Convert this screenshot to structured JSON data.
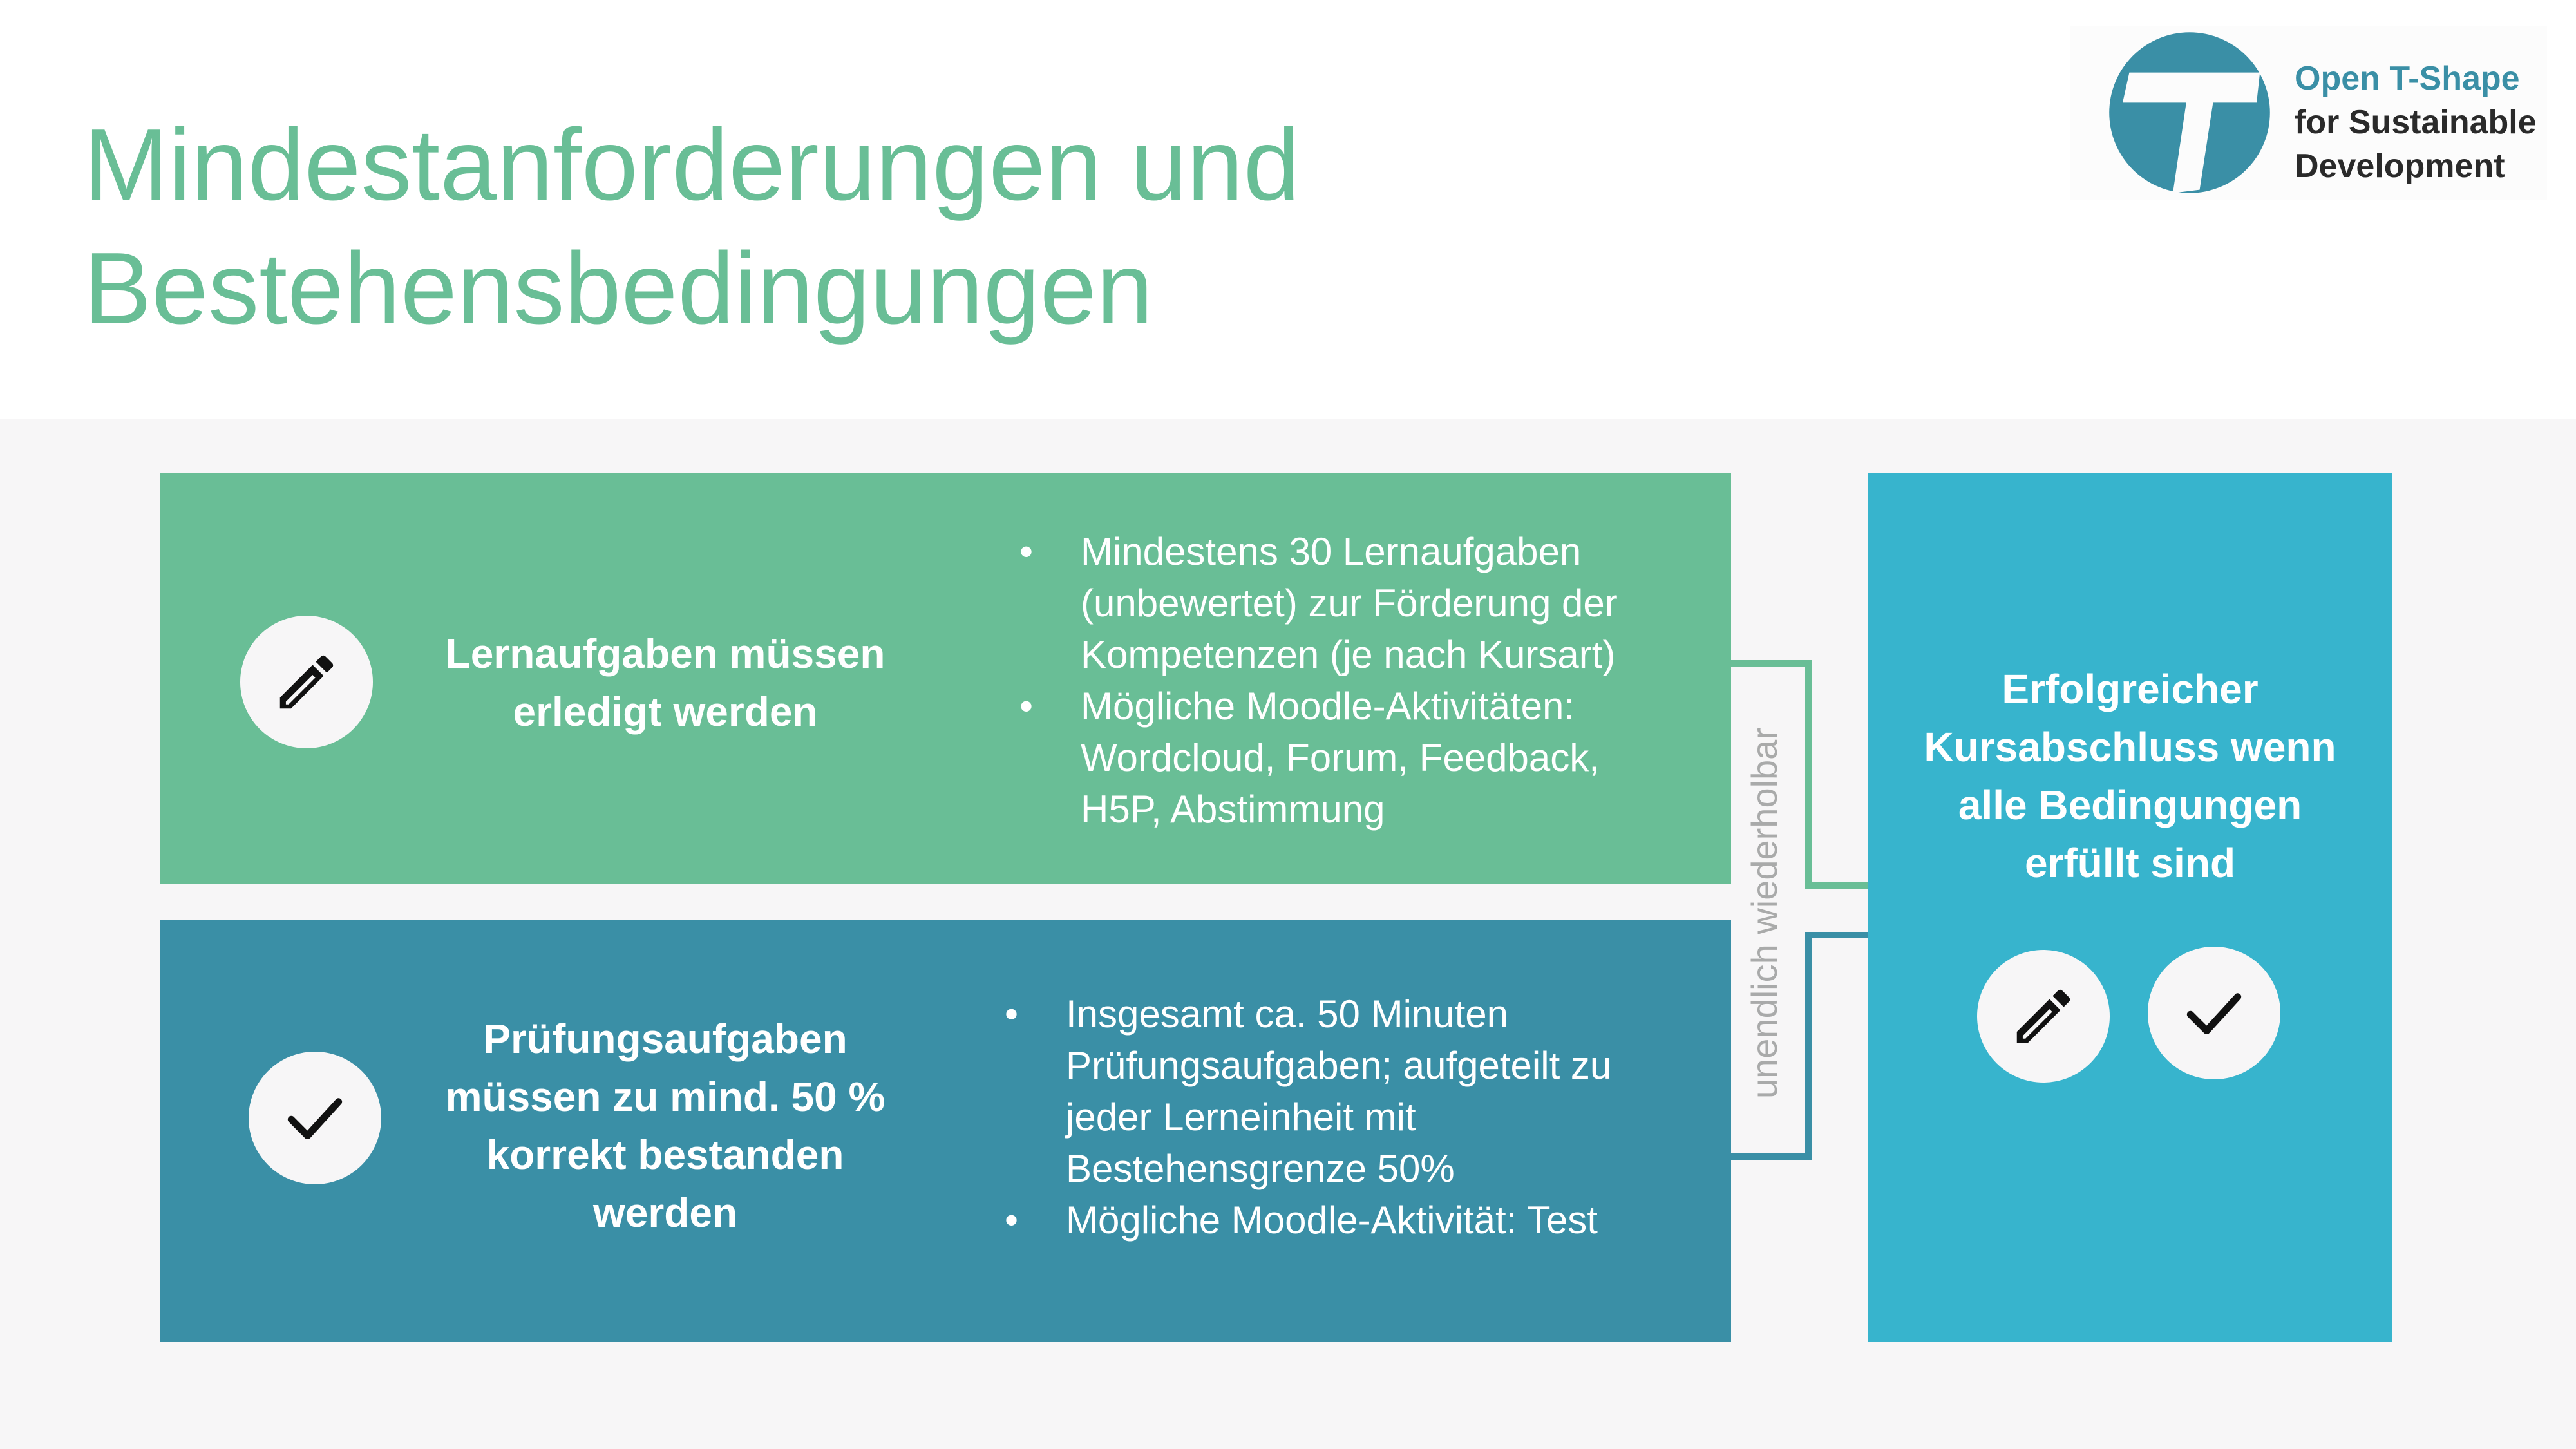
{
  "title": {
    "line1": "Mindestanforderungen und",
    "line2": "Bestehensbedingungen"
  },
  "logo": {
    "line1": "Open T-Shape",
    "line2": "for Sustainable",
    "line3": "Development",
    "colors": {
      "primary": "#3A8FA6",
      "text": "#2a2a2a"
    }
  },
  "learning_box": {
    "icon": "pencil-icon",
    "heading_line1": "Lernaufgaben müssen",
    "heading_line2": "erledigt werden",
    "bullets": [
      {
        "line1": "Mindestens 30 Lernaufgaben",
        "line2": "(unbewertet) zur Förderung der",
        "line3": "Kompetenzen (je nach Kursart)"
      },
      {
        "line1": "Mögliche Moodle-Aktivitäten:",
        "line2": "Wordcloud, Forum, Feedback,",
        "line3": "H5P, Abstimmung"
      }
    ],
    "color": "#69BE96"
  },
  "exam_box": {
    "icon": "checkmark-icon",
    "heading_line1": "Prüfungsaufgaben",
    "heading_line2": "müssen zu mind. 50 %",
    "heading_line3": "korrekt bestanden",
    "heading_line4": "werden",
    "bullets": [
      {
        "line1": "Insgesamt ca. 50 Minuten",
        "line2": "Prüfungsaufgaben; aufgeteilt zu",
        "line3": "jeder Lerneinheit mit",
        "line4": "Bestehensgrenze 50%"
      },
      {
        "line1": "Mögliche Moodle-Aktivität: Test"
      }
    ],
    "color": "#3A8FA6"
  },
  "connector_label": "unendlich wiederholbar",
  "result_box": {
    "heading_line1": "Erfolgreicher",
    "heading_line2": "Kursabschluss wenn",
    "heading_line3": "alle Bedingungen",
    "heading_line4": "erfüllt sind",
    "icons": [
      "pencil-icon",
      "checkmark-icon"
    ],
    "color": "#37B4CD"
  },
  "colors": {
    "title": "#69BE96",
    "band_background": "#F7F6F7",
    "icon_circle": "#F7F6F7"
  }
}
